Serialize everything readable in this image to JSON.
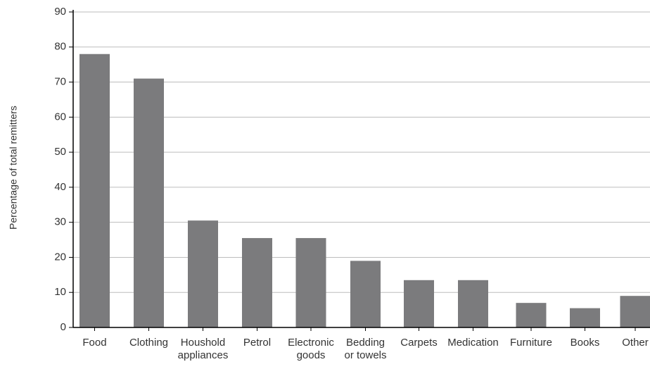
{
  "chart_data": {
    "type": "bar",
    "title": "",
    "xlabel": "",
    "ylabel": "Percentage of total remitters",
    "ylim": [
      0,
      90
    ],
    "yticks": [
      0,
      10,
      20,
      30,
      40,
      50,
      60,
      70,
      80,
      90
    ],
    "grid": true,
    "legend": "none",
    "categories": [
      [
        "Food"
      ],
      [
        "Clothing"
      ],
      [
        "Houshold",
        "appliances"
      ],
      [
        "Petrol"
      ],
      [
        "Electronic",
        "goods"
      ],
      [
        "Bedding",
        "or towels"
      ],
      [
        "Carpets"
      ],
      [
        "Medication"
      ],
      [
        "Furniture"
      ],
      [
        "Books"
      ],
      [
        "Other"
      ]
    ],
    "values": [
      78,
      71,
      30.5,
      25.5,
      25.5,
      19,
      13.5,
      13.5,
      7,
      5.5,
      9
    ],
    "colors": {
      "bar": "#7b7b7d",
      "grid": "#bdbdbd",
      "axis": "#000000"
    }
  }
}
